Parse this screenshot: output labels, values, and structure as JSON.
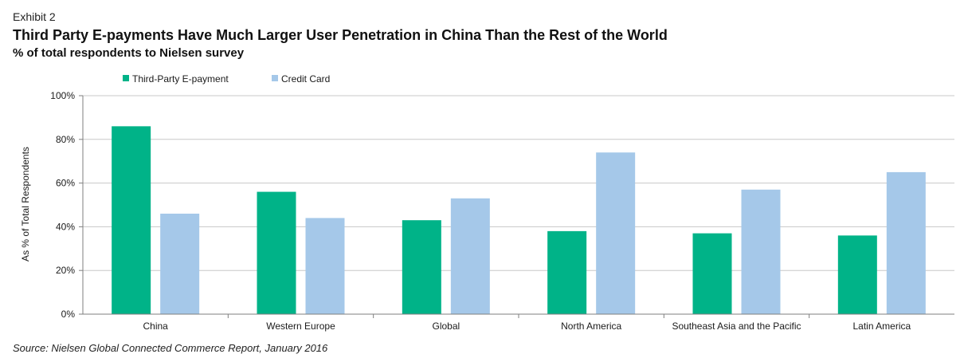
{
  "header": {
    "exhibit": "Exhibit 2",
    "title": "Third Party E-payments Have Much Larger User Penetration in China Than the Rest of the World",
    "subtitle": "% of total respondents to Nielsen survey"
  },
  "source": "Source: Nielsen Global Connected Commerce Report, January 2016",
  "colors": {
    "third_party": "#00b388",
    "credit_card": "#a5c8e9",
    "grid": "#c8c8c8",
    "axis": "#7f7f7f",
    "text": "#1a1a1a"
  },
  "chart_data": {
    "type": "bar",
    "title": "Third Party E-payments Have Much Larger User Penetration in China Than the Rest of the World",
    "subtitle": "% of total respondents to Nielsen survey",
    "xlabel": "",
    "ylabel": "As % of Total Respondents",
    "ylim": [
      0,
      100
    ],
    "yticks": [
      0,
      20,
      40,
      60,
      80,
      100
    ],
    "ytick_labels": [
      "0%",
      "20%",
      "40%",
      "60%",
      "80%",
      "100%"
    ],
    "grid": true,
    "legend_position": "top-left",
    "categories": [
      "China",
      "Western Europe",
      "Global",
      "North America",
      "Southeast Asia and the Pacific",
      "Latin America"
    ],
    "series": [
      {
        "name": "Third-Party E-payment",
        "color": "#00b388",
        "values": [
          86,
          56,
          43,
          38,
          37,
          36
        ]
      },
      {
        "name": "Credit Card",
        "color": "#a5c8e9",
        "values": [
          46,
          44,
          53,
          74,
          57,
          65
        ]
      }
    ]
  }
}
